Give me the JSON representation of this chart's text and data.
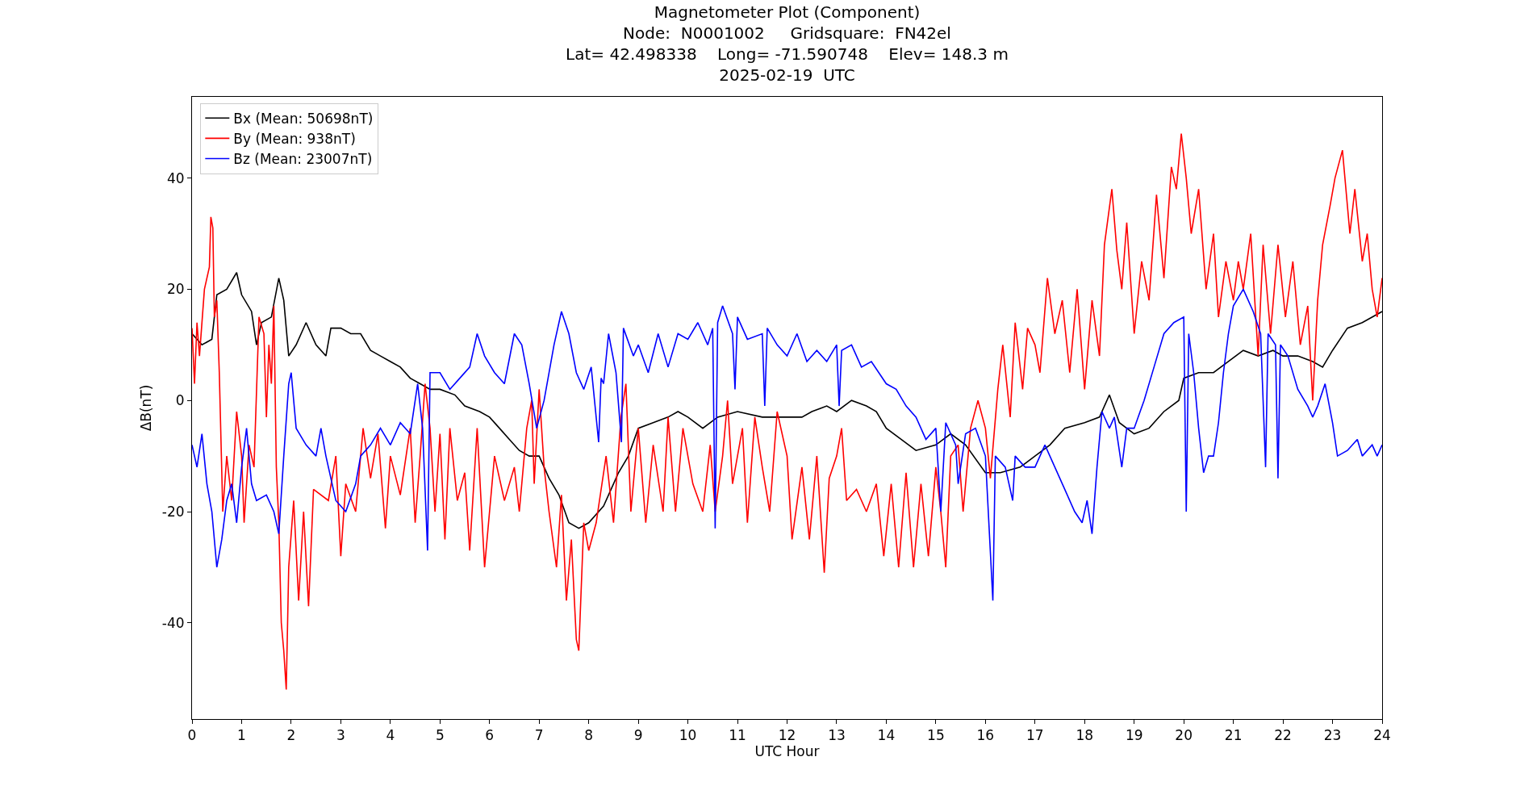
{
  "chart_data": {
    "type": "line",
    "title": "Magnetometer Plot (Component)\nNode:  N0001002     Gridsquare:  FN42el\nLat= 42.498338    Long= -71.590748    Elev= 148.3 m\n2025-02-19  UTC",
    "xlabel": "UTC Hour",
    "ylabel": "ΔB(nT)",
    "xlim": [
      0,
      24
    ],
    "xticks": [
      0,
      1,
      2,
      3,
      4,
      5,
      6,
      7,
      8,
      9,
      10,
      11,
      12,
      13,
      14,
      15,
      16,
      17,
      18,
      19,
      20,
      21,
      22,
      23,
      24
    ],
    "ylim": [
      -57.3,
      54.6
    ],
    "yticks": [
      -40,
      -20,
      0,
      20,
      40
    ],
    "legend": "top left",
    "series": [
      {
        "name": "Bx (Mean: 50698nT)",
        "color": "#000000",
        "x": [
          0,
          0.2,
          0.4,
          0.5,
          0.7,
          0.9,
          1.0,
          1.2,
          1.3,
          1.4,
          1.6,
          1.75,
          1.85,
          1.95,
          2.1,
          2.3,
          2.5,
          2.7,
          2.8,
          3.0,
          3.2,
          3.4,
          3.6,
          3.8,
          4.0,
          4.2,
          4.4,
          4.6,
          4.8,
          5.0,
          5.3,
          5.5,
          5.8,
          6.0,
          6.2,
          6.4,
          6.6,
          6.8,
          7.0,
          7.2,
          7.4,
          7.6,
          7.8,
          8.0,
          8.3,
          8.6,
          8.8,
          9.0,
          9.3,
          9.6,
          9.8,
          10.0,
          10.3,
          10.6,
          11.0,
          11.5,
          12.0,
          12.3,
          12.5,
          12.8,
          13.0,
          13.3,
          13.6,
          13.8,
          14.0,
          14.3,
          14.6,
          15.0,
          15.3,
          15.6,
          16.0,
          16.3,
          16.7,
          17.0,
          17.3,
          17.6,
          18.0,
          18.3,
          18.5,
          18.7,
          19.0,
          19.3,
          19.6,
          19.9,
          20.0,
          20.3,
          20.6,
          20.9,
          21.2,
          21.5,
          21.8,
          22.0,
          22.3,
          22.6,
          22.8,
          23.0,
          23.3,
          23.6,
          24.0
        ],
        "values": [
          12,
          10,
          11,
          19,
          20,
          23,
          19,
          16,
          10,
          14,
          15,
          22,
          18,
          8,
          10,
          14,
          10,
          8,
          13,
          13,
          12,
          12,
          9,
          8,
          7,
          6,
          4,
          3,
          2,
          2,
          1,
          -1,
          -2,
          -3,
          -5,
          -7,
          -9,
          -10,
          -10,
          -14,
          -17,
          -22,
          -23,
          -22,
          -19,
          -13,
          -10,
          -5,
          -4,
          -3,
          -2,
          -3,
          -5,
          -3,
          -2,
          -3,
          -3,
          -3,
          -2,
          -1,
          -2,
          0,
          -1,
          -2,
          -5,
          -7,
          -9,
          -8,
          -6,
          -8,
          -13,
          -13,
          -12,
          -10,
          -8,
          -5,
          -4,
          -3,
          1,
          -4,
          -6,
          -5,
          -2,
          0,
          4,
          5,
          5,
          7,
          9,
          8,
          9,
          8,
          8,
          7,
          6,
          9,
          13,
          14,
          16
        ]
      },
      {
        "name": "By (Mean: 938nT)",
        "color": "#ff0000",
        "x": [
          0,
          0.05,
          0.1,
          0.15,
          0.25,
          0.35,
          0.38,
          0.42,
          0.45,
          0.5,
          0.55,
          0.62,
          0.7,
          0.8,
          0.9,
          1.0,
          1.05,
          1.15,
          1.25,
          1.35,
          1.45,
          1.5,
          1.55,
          1.6,
          1.65,
          1.7,
          1.75,
          1.8,
          1.85,
          1.9,
          1.95,
          2.05,
          2.15,
          2.25,
          2.35,
          2.45,
          2.75,
          2.9,
          3.0,
          3.1,
          3.3,
          3.45,
          3.6,
          3.75,
          3.9,
          4.0,
          4.2,
          4.4,
          4.5,
          4.6,
          4.7,
          4.8,
          4.9,
          5.0,
          5.1,
          5.2,
          5.35,
          5.5,
          5.6,
          5.75,
          5.9,
          6.1,
          6.3,
          6.5,
          6.6,
          6.75,
          6.85,
          6.9,
          7.0,
          7.1,
          7.2,
          7.35,
          7.45,
          7.55,
          7.65,
          7.75,
          7.8,
          7.9,
          8.0,
          8.15,
          8.35,
          8.5,
          8.65,
          8.75,
          8.85,
          9.0,
          9.15,
          9.3,
          9.5,
          9.6,
          9.75,
          9.9,
          10.1,
          10.3,
          10.45,
          10.55,
          10.7,
          10.8,
          10.9,
          11.1,
          11.2,
          11.35,
          11.5,
          11.65,
          11.8,
          12.0,
          12.1,
          12.3,
          12.45,
          12.6,
          12.75,
          12.85,
          13.0,
          13.1,
          13.2,
          13.4,
          13.6,
          13.8,
          13.95,
          14.1,
          14.25,
          14.4,
          14.55,
          14.7,
          14.85,
          15.0,
          15.1,
          15.2,
          15.3,
          15.45,
          15.55,
          15.7,
          15.85,
          16.0,
          16.1,
          16.25,
          16.35,
          16.5,
          16.6,
          16.75,
          16.85,
          17.0,
          17.1,
          17.25,
          17.4,
          17.55,
          17.7,
          17.85,
          18.0,
          18.15,
          18.3,
          18.4,
          18.55,
          18.65,
          18.75,
          18.85,
          19.0,
          19.15,
          19.3,
          19.45,
          19.6,
          19.75,
          19.85,
          19.95,
          20.05,
          20.15,
          20.3,
          20.45,
          20.6,
          20.7,
          20.85,
          21.0,
          21.1,
          21.2,
          21.35,
          21.5,
          21.6,
          21.75,
          21.9,
          22.05,
          22.2,
          22.35,
          22.5,
          22.6,
          22.7,
          22.8,
          22.95,
          23.05,
          23.2,
          23.35,
          23.45,
          23.6,
          23.7,
          23.8,
          23.9,
          24.0
        ],
        "values": [
          13,
          3,
          14,
          8,
          20,
          24,
          33,
          31,
          15,
          18,
          5,
          -20,
          -10,
          -18,
          -2,
          -10,
          -22,
          -8,
          -12,
          15,
          12,
          -3,
          10,
          3,
          17,
          -12,
          -22,
          -40,
          -45,
          -52,
          -30,
          -18,
          -36,
          -20,
          -37,
          -16,
          -18,
          -10,
          -28,
          -15,
          -20,
          -5,
          -14,
          -6,
          -23,
          -10,
          -17,
          -5,
          -22,
          -10,
          3,
          -5,
          -20,
          -6,
          -25,
          -5,
          -18,
          -13,
          -27,
          -5,
          -30,
          -10,
          -18,
          -12,
          -20,
          -5,
          0,
          -15,
          2,
          -12,
          -20,
          -30,
          -17,
          -36,
          -25,
          -43,
          -45,
          -22,
          -27,
          -22,
          -10,
          -22,
          -3,
          3,
          -20,
          -5,
          -22,
          -8,
          -20,
          -3,
          -20,
          -5,
          -15,
          -20,
          -8,
          -20,
          -10,
          0,
          -15,
          -5,
          -22,
          -3,
          -12,
          -20,
          -2,
          -10,
          -25,
          -12,
          -25,
          -10,
          -31,
          -14,
          -10,
          -5,
          -18,
          -16,
          -20,
          -15,
          -28,
          -15,
          -30,
          -13,
          -30,
          -15,
          -28,
          -12,
          -20,
          -30,
          -10,
          -8,
          -20,
          -5,
          0,
          -5,
          -14,
          2,
          10,
          -3,
          14,
          2,
          13,
          10,
          5,
          22,
          12,
          18,
          5,
          20,
          2,
          18,
          8,
          28,
          38,
          27,
          20,
          32,
          12,
          25,
          18,
          37,
          22,
          42,
          38,
          48,
          40,
          30,
          38,
          20,
          30,
          15,
          25,
          18,
          25,
          20,
          30,
          8,
          28,
          12,
          28,
          15,
          25,
          10,
          17,
          0,
          18,
          28,
          35,
          40,
          45,
          30,
          38,
          25,
          30,
          20,
          15,
          22
        ]
      },
      {
        "name": "Bz (Mean: 23007nT)",
        "color": "#0000ff",
        "x": [
          0,
          0.1,
          0.2,
          0.3,
          0.4,
          0.5,
          0.6,
          0.7,
          0.8,
          0.9,
          1.0,
          1.1,
          1.2,
          1.3,
          1.5,
          1.65,
          1.75,
          1.85,
          1.95,
          2.0,
          2.1,
          2.3,
          2.5,
          2.6,
          2.7,
          2.9,
          3.1,
          3.3,
          3.4,
          3.6,
          3.8,
          4.0,
          4.2,
          4.4,
          4.55,
          4.65,
          4.75,
          4.8,
          5.0,
          5.2,
          5.4,
          5.6,
          5.75,
          5.9,
          6.1,
          6.3,
          6.5,
          6.65,
          6.8,
          6.95,
          7.1,
          7.3,
          7.45,
          7.6,
          7.75,
          7.9,
          8.05,
          8.2,
          8.25,
          8.3,
          8.4,
          8.55,
          8.66,
          8.7,
          8.9,
          9.0,
          9.2,
          9.4,
          9.6,
          9.8,
          10.0,
          10.2,
          10.4,
          10.5,
          10.55,
          10.6,
          10.7,
          10.9,
          10.95,
          11.0,
          11.2,
          11.5,
          11.55,
          11.6,
          11.8,
          12.0,
          12.2,
          12.4,
          12.6,
          12.8,
          13.0,
          13.05,
          13.1,
          13.3,
          13.5,
          13.7,
          14.0,
          14.2,
          14.4,
          14.6,
          14.8,
          15.0,
          15.1,
          15.2,
          15.4,
          15.45,
          15.6,
          15.8,
          16.0,
          16.15,
          16.2,
          16.4,
          16.55,
          16.6,
          16.8,
          17.0,
          17.2,
          17.4,
          17.6,
          17.8,
          17.95,
          18.05,
          18.15,
          18.25,
          18.35,
          18.5,
          18.6,
          18.75,
          18.85,
          19.0,
          19.2,
          19.4,
          19.6,
          19.8,
          20.0,
          20.05,
          20.1,
          20.2,
          20.3,
          20.4,
          20.5,
          20.6,
          20.7,
          20.8,
          20.9,
          21.0,
          21.2,
          21.4,
          21.55,
          21.65,
          21.7,
          21.85,
          21.9,
          21.95,
          22.1,
          22.3,
          22.5,
          22.6,
          22.7,
          22.85,
          23.0,
          23.1,
          23.3,
          23.5,
          23.6,
          23.8,
          23.9,
          24.0
        ],
        "values": [
          -8,
          -12,
          -6,
          -15,
          -20,
          -30,
          -25,
          -18,
          -15,
          -22,
          -12,
          -5,
          -15,
          -18,
          -17,
          -20,
          -24,
          -10,
          3,
          5,
          -5,
          -8,
          -10,
          -5,
          -10,
          -18,
          -20,
          -15,
          -10,
          -8,
          -5,
          -8,
          -4,
          -6,
          3,
          -5,
          -27,
          5,
          5,
          2,
          4,
          6,
          12,
          8,
          5,
          3,
          12,
          10,
          3,
          -5,
          0,
          10,
          16,
          12,
          5,
          2,
          6,
          -7.5,
          4,
          3,
          12,
          5,
          -7.5,
          13,
          8,
          10,
          5,
          12,
          6,
          12,
          11,
          14,
          10,
          13,
          -23,
          14,
          17,
          12,
          2,
          15,
          11,
          12,
          -1,
          13,
          10,
          8,
          12,
          7,
          9,
          7,
          10,
          -1,
          9,
          10,
          6,
          7,
          3,
          2,
          -1,
          -3,
          -7,
          -5,
          -20,
          -4,
          -8,
          -15,
          -6,
          -5,
          -10,
          -36,
          -10,
          -12,
          -18,
          -10,
          -12,
          -12,
          -8,
          -12,
          -16,
          -20,
          -22,
          -18,
          -24,
          -12,
          -2,
          -5,
          -3,
          -12,
          -5,
          -5,
          0,
          6,
          12,
          14,
          15,
          -20,
          12,
          5,
          -5,
          -13,
          -10,
          -10,
          -4,
          5,
          12,
          17,
          20,
          16,
          12,
          -12,
          12,
          10,
          -14,
          10,
          8,
          2,
          -1,
          -3,
          -1,
          3,
          -4,
          -10,
          -9,
          -7,
          -10,
          -8,
          -10,
          -8
        ]
      }
    ]
  }
}
